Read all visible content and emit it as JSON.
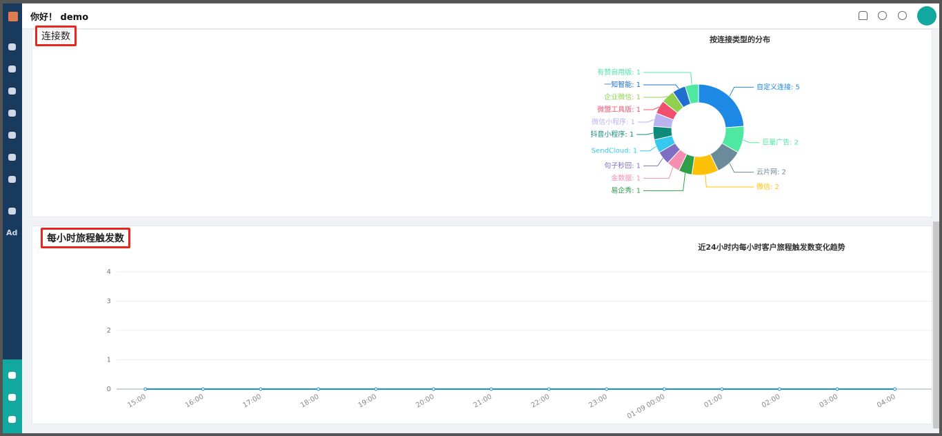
{
  "header": {
    "greeting": "你好！ demo"
  },
  "sidebar": {
    "ad_label": "Ad"
  },
  "panels": [
    {
      "title": "连接数"
    },
    {
      "title": "每小时旅程触发数"
    }
  ],
  "chart_data": [
    {
      "type": "pie",
      "title": "按连接类型的分布",
      "donut": true,
      "categories": [
        "自定义连接",
        "巨量广告",
        "云片网",
        "微信",
        "易企秀",
        "金数据",
        "句子秒回",
        "SendCloud",
        "抖音小程序",
        "微信小程序",
        "微盟工具版",
        "企业微信",
        "一知智能",
        "有赞自用版"
      ],
      "values": [
        5,
        2,
        2,
        2,
        1,
        1,
        1,
        1,
        1,
        1,
        1,
        1,
        1,
        1
      ],
      "value_labels": [
        "自定义连接: 5",
        "巨量广告: 2",
        "云片网: 2",
        "微信: 2",
        "易企秀: 1",
        "金数据: 1",
        "句子秒回: 1",
        "SendCloud: 1",
        "抖音小程序: 1",
        "微信小程序: 1",
        "微盟工具版: 1",
        "企业微信: 1",
        "一知智能: 1",
        "有赞自用版: 1"
      ],
      "colors": [
        "#1e88e5",
        "#4ee8a0",
        "#6b8a9a",
        "#ffc107",
        "#2e9e48",
        "#f48fb1",
        "#7e6fc4",
        "#36c9f0",
        "#0e8a7a",
        "#b9b3f0",
        "#f0506e",
        "#8fd14f",
        "#1e6fd0",
        "#4ee8a0"
      ]
    },
    {
      "type": "line",
      "title": "近24小时内每小时客户旅程触发数变化趋势",
      "categories": [
        "15:00",
        "16:00",
        "17:00",
        "18:00",
        "19:00",
        "20:00",
        "21:00",
        "22:00",
        "23:00",
        "01-09 00:00",
        "01:00",
        "02:00",
        "03:00",
        "04:00"
      ],
      "series": [
        {
          "color": "#1f8ecf",
          "values": [
            0,
            0,
            0,
            0,
            0,
            0,
            0,
            0,
            0,
            0,
            0,
            0,
            0,
            0
          ]
        }
      ],
      "ylim": [
        0,
        4
      ],
      "yticks": [
        0,
        1,
        2,
        3,
        4
      ],
      "grid": true
    }
  ]
}
